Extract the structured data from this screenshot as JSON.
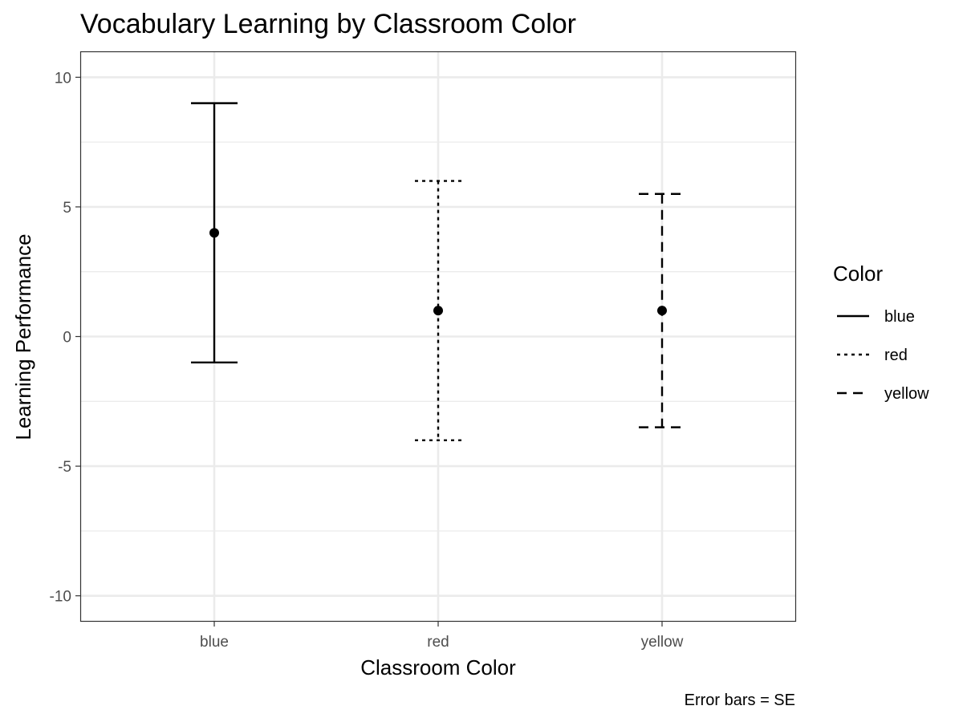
{
  "chart_data": {
    "type": "errorbar",
    "title": "Vocabulary Learning by Classroom Color",
    "xlabel": "Classroom Color",
    "ylabel": "Learning Performance",
    "caption": "Error bars = SE",
    "categories": [
      "blue",
      "red",
      "yellow"
    ],
    "ylim": [
      -11,
      11
    ],
    "y_ticks": [
      -10,
      -5,
      0,
      5,
      10
    ],
    "y_tick_labels": [
      "-10",
      "-5",
      "0",
      "5",
      "10"
    ],
    "grid": true,
    "legend": {
      "title": "Color",
      "position": "right",
      "items": [
        {
          "label": "blue",
          "linetype": "solid"
        },
        {
          "label": "red",
          "linetype": "dotted"
        },
        {
          "label": "yellow",
          "linetype": "dashed"
        }
      ]
    },
    "series": [
      {
        "category": "blue",
        "mean": 4,
        "lower": -1,
        "upper": 9,
        "linetype": "solid"
      },
      {
        "category": "red",
        "mean": 1,
        "lower": -4,
        "upper": 6,
        "linetype": "dotted"
      },
      {
        "category": "yellow",
        "mean": 1,
        "lower": -3.5,
        "upper": 5.5,
        "linetype": "dashed"
      }
    ],
    "colors": {
      "ink": "#000000",
      "grid": "#ebebeb",
      "panel_border": "#333333",
      "tick_text": "#4d4d4d"
    }
  }
}
